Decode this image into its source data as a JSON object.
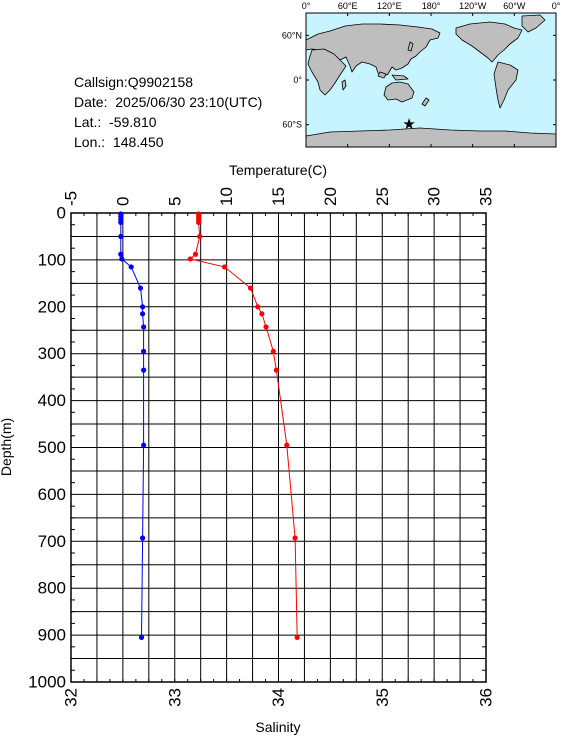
{
  "station": {
    "callsign_label": "Callsign:",
    "callsign": "Q9902158",
    "date_label": "Date:",
    "date": "2025/06/30 23:10(UTC)",
    "lat_label": "Lat.:",
    "lat": "-59.810",
    "lon_label": "Lon.:",
    "lon": "148.450"
  },
  "map": {
    "lon_ticks": [
      "0°",
      "60°E",
      "120°E",
      "180°",
      "120°W",
      "60°W",
      "0°"
    ],
    "lat_ticks": [
      "60°N",
      "0°",
      "60°S"
    ],
    "ocean_color": "#c8f4ff",
    "land_color": "#bebebe",
    "marker": {
      "symbol": "star",
      "color": "#ff0000",
      "lon": 148.45,
      "lat": -59.81
    }
  },
  "chart_data": {
    "type": "line",
    "top_axis": {
      "label": "Temperature(C)",
      "range": [
        -5,
        35
      ],
      "ticks": [
        -5,
        0,
        5,
        10,
        15,
        20,
        25,
        30,
        35
      ]
    },
    "bottom_axis": {
      "label": "Salinity",
      "range": [
        32,
        36
      ],
      "ticks": [
        32,
        33,
        34,
        35,
        36
      ]
    },
    "left_axis": {
      "label": "Depth(m)",
      "range": [
        0,
        1000
      ],
      "inverted": true,
      "ticks": [
        0,
        100,
        200,
        300,
        400,
        500,
        600,
        700,
        800,
        900,
        1000
      ]
    },
    "grid": true,
    "series": [
      {
        "axis": "top",
        "color": "#ff0000",
        "points": [
          [
            7.3,
            2
          ],
          [
            7.3,
            8
          ],
          [
            7.3,
            14
          ],
          [
            7.3,
            20
          ],
          [
            7.4,
            50
          ],
          [
            7.0,
            88
          ],
          [
            6.5,
            98
          ],
          [
            9.8,
            115
          ],
          [
            12.3,
            160
          ],
          [
            13.0,
            200
          ],
          [
            13.4,
            215
          ],
          [
            13.8,
            243
          ],
          [
            14.5,
            295
          ],
          [
            14.8,
            335
          ],
          [
            15.8,
            495
          ],
          [
            16.6,
            693
          ],
          [
            16.8,
            905
          ]
        ]
      },
      {
        "axis": "bottom",
        "color": "#0000ff",
        "points": [
          [
            32.48,
            2
          ],
          [
            32.48,
            8
          ],
          [
            32.48,
            14
          ],
          [
            32.48,
            20
          ],
          [
            32.48,
            50
          ],
          [
            32.48,
            88
          ],
          [
            32.49,
            98
          ],
          [
            32.58,
            115
          ],
          [
            32.67,
            160
          ],
          [
            32.69,
            200
          ],
          [
            32.69,
            215
          ],
          [
            32.7,
            243
          ],
          [
            32.7,
            295
          ],
          [
            32.7,
            335
          ],
          [
            32.7,
            495
          ],
          [
            32.69,
            693
          ],
          [
            32.68,
            905
          ]
        ]
      }
    ]
  }
}
